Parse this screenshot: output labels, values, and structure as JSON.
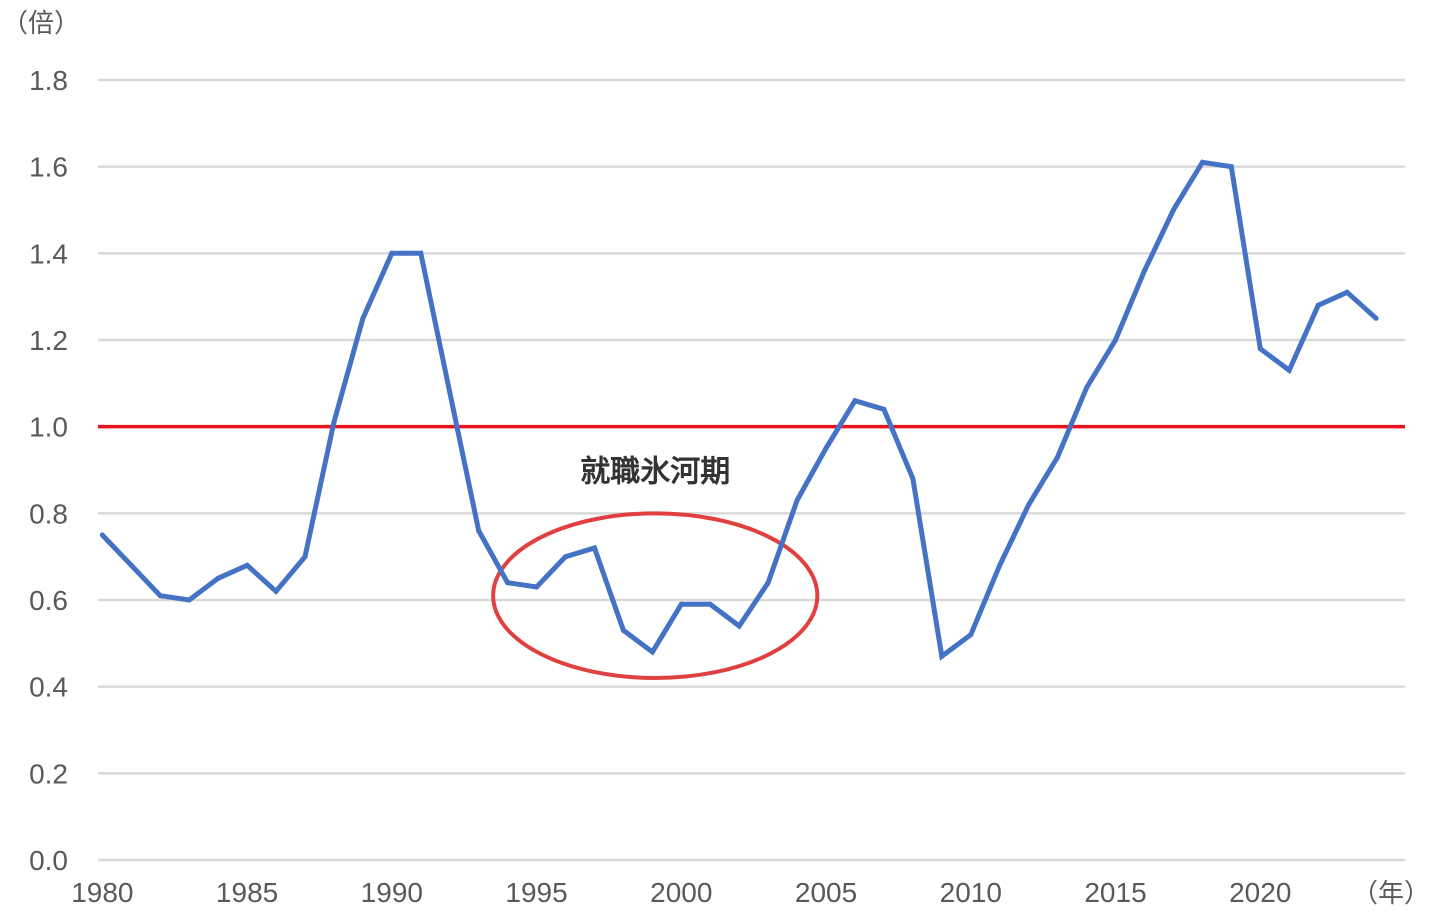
{
  "chart_data": {
    "type": "line",
    "y_unit_label": "（倍）",
    "x_unit_label": "（年）",
    "ylim": [
      0,
      1.8
    ],
    "y_ticks": [
      "0.0",
      "0.2",
      "0.4",
      "0.6",
      "0.8",
      "1.0",
      "1.2",
      "1.4",
      "1.6",
      "1.8"
    ],
    "x_ticks": [
      "1980",
      "1985",
      "1990",
      "1995",
      "2000",
      "2005",
      "2010",
      "2015",
      "2020"
    ],
    "grid": true,
    "reference_line": {
      "y": 1.0,
      "color": "#e8141c"
    },
    "annotation": {
      "text": "就職氷河期",
      "x_range": [
        1993.5,
        2004.7
      ],
      "y_range": [
        0.42,
        0.8
      ]
    },
    "series": [
      {
        "color": "#4472c4",
        "x": [
          1980,
          1981,
          1982,
          1983,
          1984,
          1985,
          1986,
          1987,
          1988,
          1989,
          1990,
          1991,
          1992,
          1993,
          1994,
          1995,
          1996,
          1997,
          1998,
          1999,
          2000,
          2001,
          2002,
          2003,
          2004,
          2005,
          2006,
          2007,
          2008,
          2009,
          2010,
          2011,
          2012,
          2013,
          2014,
          2015,
          2016,
          2017,
          2018,
          2019,
          2020,
          2021,
          2022,
          2023,
          2024
        ],
        "y": [
          0.75,
          0.68,
          0.61,
          0.6,
          0.65,
          0.68,
          0.62,
          0.7,
          1.01,
          1.25,
          1.4,
          1.4,
          1.08,
          0.76,
          0.64,
          0.63,
          0.7,
          0.72,
          0.53,
          0.48,
          0.59,
          0.59,
          0.54,
          0.64,
          0.83,
          0.95,
          1.06,
          1.04,
          0.88,
          0.47,
          0.52,
          0.68,
          0.82,
          0.93,
          1.09,
          1.2,
          1.36,
          1.5,
          1.61,
          1.6,
          1.18,
          1.13,
          1.28,
          1.31,
          1.25
        ]
      }
    ],
    "colors": {
      "series": "#4472c4",
      "reference": "#e8141c",
      "annotation_ellipse": "#e04040",
      "grid": "#d9d9d9"
    }
  }
}
